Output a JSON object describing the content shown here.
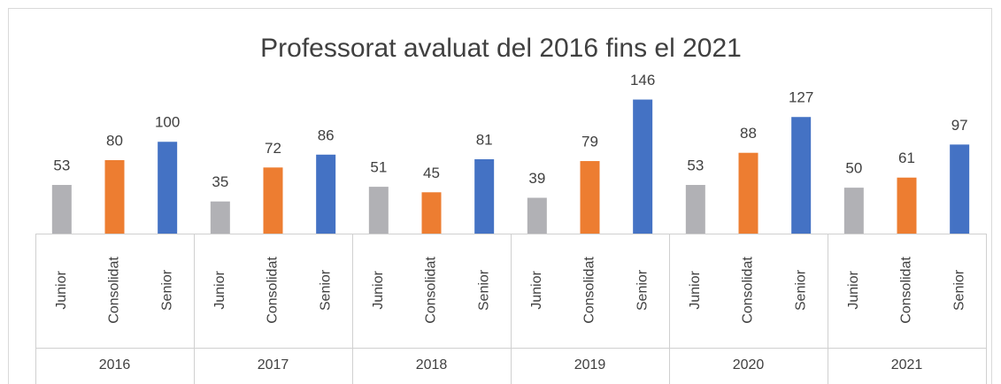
{
  "chart_data": {
    "type": "bar",
    "title": "Professorat avaluat del 2016 fins el 2021",
    "categories": [
      "2016",
      "2017",
      "2018",
      "2019",
      "2020",
      "2021"
    ],
    "series": [
      {
        "name": "Junior",
        "color": "#b1b1b5",
        "values": [
          53,
          35,
          51,
          39,
          53,
          50
        ]
      },
      {
        "name": "Consolidat",
        "color": "#ed7d31",
        "values": [
          80,
          72,
          45,
          79,
          88,
          61
        ]
      },
      {
        "name": "Senior",
        "color": "#4472c4",
        "values": [
          100,
          86,
          81,
          146,
          127,
          97
        ]
      }
    ],
    "ylim": [
      0,
      160
    ]
  }
}
